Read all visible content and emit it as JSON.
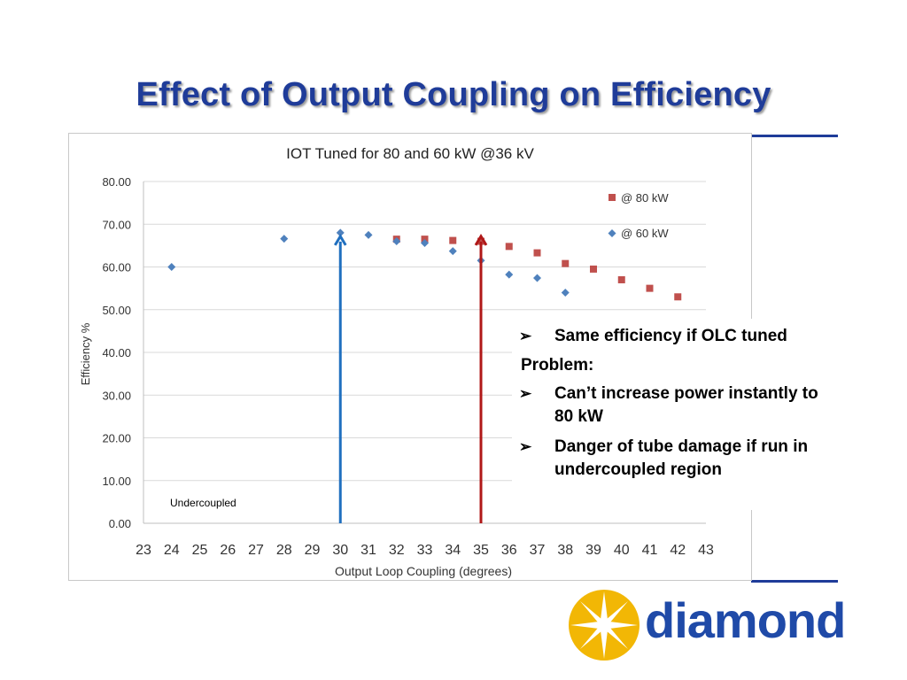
{
  "slide": {
    "title": "Effect of Output Coupling on Efficiency"
  },
  "colors": {
    "title": "#1f3c99",
    "series_80kw": "#c0504d",
    "series_60kw": "#4f81bd",
    "arrow_blue": "#1f6fbf",
    "arrow_red": "#b01818",
    "logo_star": "#f2b705",
    "logo_text": "#1f4aa8"
  },
  "chart_data": {
    "type": "scatter",
    "title": "IOT Tuned for 80 and 60 kW @36 kV",
    "xlabel": "Output Loop Coupling  (degrees)",
    "ylabel": "Efficiency %",
    "xlim": [
      23,
      43
    ],
    "ylim": [
      0,
      80
    ],
    "x_ticks": [
      "23",
      "24",
      "25",
      "26",
      "27",
      "28",
      "29",
      "30",
      "31",
      "32",
      "33",
      "34",
      "35",
      "36",
      "37",
      "38",
      "39",
      "40",
      "41",
      "42",
      "43"
    ],
    "y_ticks": [
      "0.00",
      "10.00",
      "20.00",
      "30.00",
      "40.00",
      "50.00",
      "60.00",
      "70.00",
      "80.00"
    ],
    "grid": "horizontal",
    "legend_position": "top-right",
    "series": [
      {
        "name": "@ 80 kW",
        "marker": "square",
        "x": [
          32,
          33,
          34,
          35,
          36,
          37,
          38,
          39,
          40,
          41,
          42
        ],
        "y": [
          66.5,
          66.5,
          66.2,
          66.0,
          64.8,
          63.3,
          60.8,
          59.5,
          57.0,
          55.0,
          53.0
        ]
      },
      {
        "name": "@ 60 kW",
        "marker": "diamond",
        "x": [
          24,
          28,
          30,
          31,
          32,
          33,
          34,
          35,
          36,
          37,
          38
        ],
        "y": [
          60.0,
          66.6,
          68.0,
          67.5,
          66.0,
          65.6,
          63.7,
          61.5,
          58.2,
          57.4,
          54.0
        ]
      }
    ],
    "annotations": [
      {
        "text": "Undercoupled",
        "x": 24,
        "y": 5
      }
    ],
    "markers": [
      {
        "kind": "vertical-arrow",
        "x": 30,
        "color": "blue"
      },
      {
        "kind": "vertical-arrow",
        "x": 35,
        "color": "red"
      }
    ]
  },
  "callout": {
    "line1": "Same efficiency if OLC tuned",
    "line2": "Problem:",
    "line3a": "Can’t increase power instantly to",
    "line3b": "80 kW",
    "line4a": "Danger of tube damage if run in",
    "line4b": "undercoupled region",
    "bullet_glyph": "➢"
  },
  "logo": {
    "text": "diamond",
    "icon": "starburst-icon"
  }
}
